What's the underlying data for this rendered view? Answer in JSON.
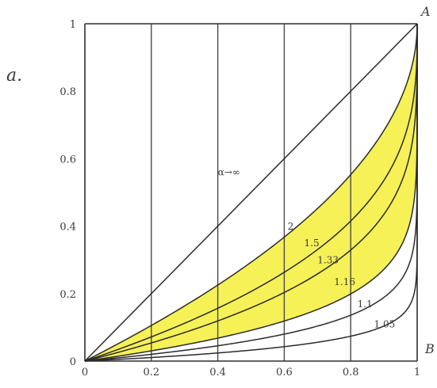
{
  "panel_label": "a.",
  "corner_labels": {
    "top_right": "A",
    "bottom_right": "B"
  },
  "chart_data": {
    "type": "line",
    "title": "",
    "xlabel": "",
    "ylabel": "",
    "xlim": [
      0,
      1
    ],
    "ylim": [
      0,
      1
    ],
    "x_ticks": [
      "0",
      "0.2",
      "0.4",
      "0.6",
      "0.8",
      "1"
    ],
    "y_ticks": [
      "0",
      "0.2",
      "0.4",
      "0.6",
      "0.8",
      "1"
    ],
    "grid": {
      "vertical": true,
      "horizontal": false
    },
    "shaded_band": {
      "upper_series": "2",
      "lower_series": "1.16",
      "color": "#f3ef3a"
    },
    "series": [
      {
        "name": "α→∞",
        "alpha": null,
        "points": [
          [
            0,
            0
          ],
          [
            1,
            1
          ]
        ]
      },
      {
        "name": "2",
        "alpha": 2
      },
      {
        "name": "1.5",
        "alpha": 1.5
      },
      {
        "name": "1.33",
        "alpha": 1.33
      },
      {
        "name": "1.16",
        "alpha": 1.16
      },
      {
        "name": "1.1",
        "alpha": 1.1
      },
      {
        "name": "1.05",
        "alpha": 1.05
      }
    ],
    "curve_labels": [
      "α→∞",
      "2",
      "1.5",
      "1.33",
      "1.16",
      "1.1",
      "1.05"
    ]
  }
}
